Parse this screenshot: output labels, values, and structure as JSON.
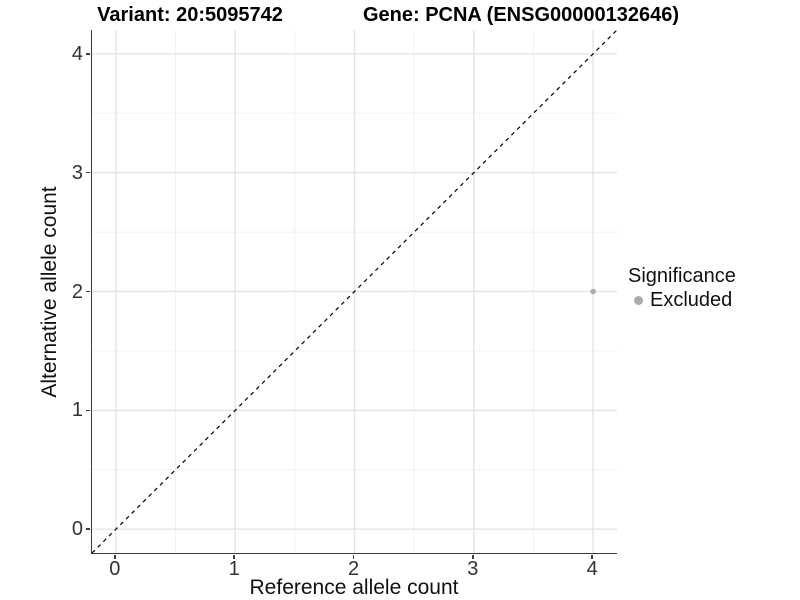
{
  "figure": {
    "title_left": "Variant: 20:5095742",
    "title_right": "Gene: PCNA (ENSG00000132646)"
  },
  "chart_data": {
    "type": "scatter",
    "title": "Variant: 20:5095742    Gene: PCNA (ENSG00000132646)",
    "xlabel": "Reference allele count",
    "ylabel": "Alternative allele count",
    "xlim": [
      -0.2,
      4.2
    ],
    "ylim": [
      -0.2,
      4.2
    ],
    "x_ticks": [
      0,
      1,
      2,
      3,
      4
    ],
    "y_ticks": [
      0,
      1,
      2,
      3,
      4
    ],
    "x_minor_ticks": [
      0.5,
      1.5,
      2.5,
      3.5
    ],
    "y_minor_ticks": [
      0.5,
      1.5,
      2.5,
      3.5
    ],
    "grid": true,
    "points": [
      {
        "x": 4,
        "y": 2,
        "series": "Excluded"
      }
    ],
    "identity_line": {
      "slope": 1,
      "intercept": 0,
      "style": "dashed",
      "color": "#000000"
    },
    "legend": {
      "title": "Significance",
      "position": "right",
      "items": [
        {
          "label": "Excluded",
          "color": "#ababab"
        }
      ]
    },
    "colors": {
      "point": "#ababab",
      "grid_major": "#e4e4e4",
      "grid_minor": "#f1f1f1",
      "axis": "#3c3c3c",
      "tick_label": "#333333",
      "title": "#000000"
    }
  }
}
